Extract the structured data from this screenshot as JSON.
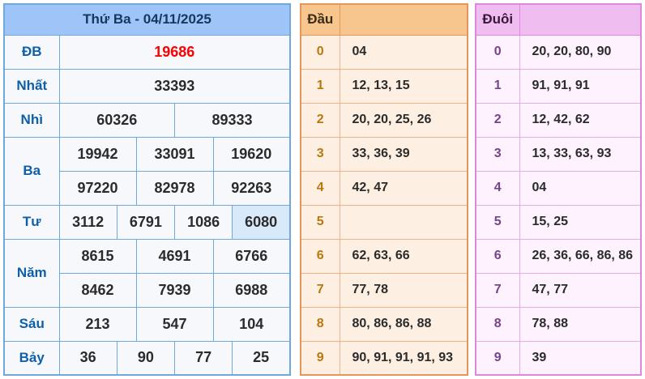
{
  "colors": {
    "page_bg": "#ffffff",
    "results_border": "#6fa8dc",
    "results_header_bg": "#9fc5f8",
    "results_header_text": "#17375e",
    "results_body_bg": "#f6f8fb",
    "results_label_text": "#0f5fa8",
    "value_text": "#2b2b2b",
    "special_prize_text": "#ff0000",
    "highlight_cell_bg": "#d8eafa",
    "dau_border": "#e5975a",
    "dau_header_bg": "#f7c68f",
    "dau_body_bg": "#fdf0e2",
    "dau_digit_text": "#b9770e",
    "duoi_border": "#dd87dd",
    "duoi_header_bg": "#efbdef",
    "duoi_body_bg": "#fdf2fd",
    "duoi_digit_text": "#76448a"
  },
  "results": {
    "title": "Thứ Ba - 04/11/2025",
    "rows": [
      {
        "label": "ĐB",
        "lines": [
          [
            {
              "t": "19686",
              "style": "special"
            }
          ]
        ]
      },
      {
        "label": "Nhất",
        "lines": [
          [
            {
              "t": "33393"
            }
          ]
        ]
      },
      {
        "label": "Nhì",
        "lines": [
          [
            {
              "t": "60326"
            },
            {
              "t": "89333"
            }
          ]
        ]
      },
      {
        "label": "Ba",
        "lines": [
          [
            {
              "t": "19942"
            },
            {
              "t": "33091"
            },
            {
              "t": "19620"
            }
          ],
          [
            {
              "t": "97220"
            },
            {
              "t": "82978"
            },
            {
              "t": "92263"
            }
          ]
        ]
      },
      {
        "label": "Tư",
        "lines": [
          [
            {
              "t": "3112"
            },
            {
              "t": "6791"
            },
            {
              "t": "1086"
            },
            {
              "t": "6080",
              "style": "highlight"
            }
          ]
        ]
      },
      {
        "label": "Năm",
        "lines": [
          [
            {
              "t": "8615"
            },
            {
              "t": "4691"
            },
            {
              "t": "6766"
            }
          ],
          [
            {
              "t": "8462"
            },
            {
              "t": "7939"
            },
            {
              "t": "6988"
            }
          ]
        ]
      },
      {
        "label": "Sáu",
        "lines": [
          [
            {
              "t": "213"
            },
            {
              "t": "547"
            },
            {
              "t": "104"
            }
          ]
        ]
      },
      {
        "label": "Bảy",
        "lines": [
          [
            {
              "t": "36"
            },
            {
              "t": "90"
            },
            {
              "t": "77"
            },
            {
              "t": "25"
            }
          ]
        ]
      }
    ]
  },
  "dau": {
    "title": "Đầu",
    "rows": [
      {
        "digit": "0",
        "values": "04"
      },
      {
        "digit": "1",
        "values": "12, 13, 15"
      },
      {
        "digit": "2",
        "values": "20, 20, 25, 26"
      },
      {
        "digit": "3",
        "values": "33, 36, 39"
      },
      {
        "digit": "4",
        "values": "42, 47"
      },
      {
        "digit": "5",
        "values": ""
      },
      {
        "digit": "6",
        "values": "62, 63, 66"
      },
      {
        "digit": "7",
        "values": "77, 78"
      },
      {
        "digit": "8",
        "values": "80, 86, 86, 88"
      },
      {
        "digit": "9",
        "values": "90, 91, 91, 91, 93"
      }
    ]
  },
  "duoi": {
    "title": "Đuôi",
    "rows": [
      {
        "digit": "0",
        "values": "20, 20, 80, 90"
      },
      {
        "digit": "1",
        "values": "91, 91, 91"
      },
      {
        "digit": "2",
        "values": "12, 42, 62"
      },
      {
        "digit": "3",
        "values": "13, 33, 63, 93"
      },
      {
        "digit": "4",
        "values": "04"
      },
      {
        "digit": "5",
        "values": "15, 25"
      },
      {
        "digit": "6",
        "values": "26, 36, 66, 86, 86"
      },
      {
        "digit": "7",
        "values": "47, 77"
      },
      {
        "digit": "8",
        "values": "78, 88"
      },
      {
        "digit": "9",
        "values": "39"
      }
    ]
  }
}
